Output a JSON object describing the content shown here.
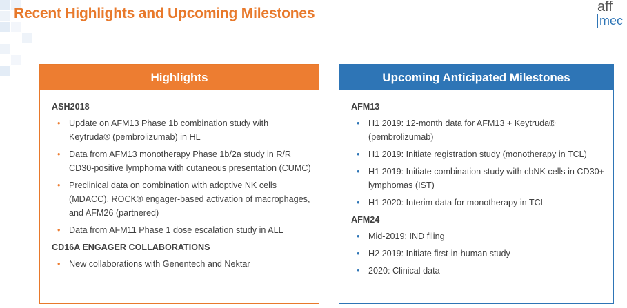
{
  "title": "Recent Highlights and Upcoming Milestones",
  "logo": [
    "aff",
    "mec"
  ],
  "panels": [
    {
      "header": "Highlights",
      "groups": [
        {
          "heading": "ASH2018",
          "items": [
            "Update on AFM13 Phase 1b combination study with Keytruda® (pembrolizumab) in HL",
            "Data from AFM13 monotherapy Phase 1b/2a study in R/R CD30-positive lymphoma with cutaneous presentation (CUMC)",
            "Preclinical data on combination with adoptive NK cells (MDACC), ROCK® engager-based activation of macrophages, and AFM26 (partnered)",
            "Data from AFM11 Phase 1 dose escalation study in ALL"
          ]
        },
        {
          "heading": "CD16A ENGAGER COLLABORATIONS",
          "items": [
            "New collaborations with Genentech and Nektar"
          ]
        }
      ]
    },
    {
      "header": "Upcoming Anticipated Milestones",
      "groups": [
        {
          "heading": "AFM13",
          "items": [
            "H1 2019: 12-month data for AFM13 + Keytruda® (pembrolizumab)",
            "H1 2019: Initiate registration study (monotherapy in TCL)",
            "H1 2019: Initiate combination study with cbNK cells in CD30+ lymphomas (IST)",
            "H1 2020: Interim data for monotherapy in TCL"
          ]
        },
        {
          "heading": "AFM24",
          "items": [
            "Mid-2019: IND filing",
            "H2 2019: Initiate first-in-human study",
            "2020: Clinical data"
          ]
        }
      ]
    }
  ]
}
